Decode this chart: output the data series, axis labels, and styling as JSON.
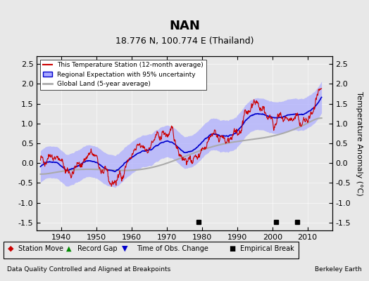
{
  "title": "NAN",
  "subtitle": "18.776 N, 100.774 E (Thailand)",
  "ylabel": "Temperature Anomaly (°C)",
  "xlabel_left": "Data Quality Controlled and Aligned at Breakpoints",
  "xlabel_right": "Berkeley Earth",
  "ylim": [
    -1.7,
    2.7
  ],
  "xlim": [
    1933,
    2017
  ],
  "xticks": [
    1940,
    1950,
    1960,
    1970,
    1980,
    1990,
    2000,
    2010
  ],
  "yticks": [
    -1.5,
    -1.0,
    -0.5,
    0.0,
    0.5,
    1.0,
    1.5,
    2.0,
    2.5
  ],
  "bg_color": "#e8e8e8",
  "plot_bg_color": "#e8e8e8",
  "station_color": "#cc0000",
  "regional_color": "#0000cc",
  "regional_fill_color": "#aaaaff",
  "global_color": "#aaaaaa",
  "empirical_break_years": [
    1979,
    2001,
    2007
  ],
  "time_obs_change_years": [],
  "station_move_years": [],
  "record_gap_years": []
}
